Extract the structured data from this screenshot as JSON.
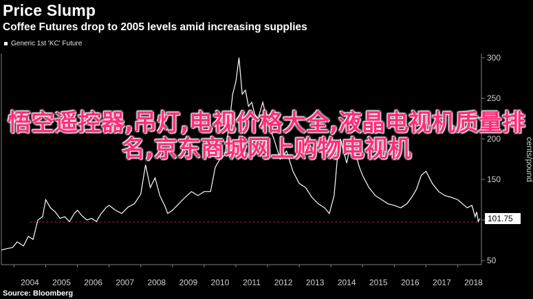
{
  "header": {
    "title": "Price Slump",
    "subtitle": "Coffee Futures drop to 2005 levels amid increasing supplies"
  },
  "footer": {
    "source": "Source: Bloomberg"
  },
  "overlay_text": "悟空遥控器,吊灯,电视价格大全,液晶电视机质量排名,京东商城网上购物电视机",
  "colors": {
    "background": "#000000",
    "line": "#ffffff",
    "reference_line": "#c0203a",
    "overlay": "#ff2d7a"
  },
  "chart_data": {
    "type": "line",
    "title": "Price Slump",
    "subtitle": "Coffee Futures drop to 2005 levels amid increasing supplies",
    "ylabel": "cents/pound",
    "xlabel": "",
    "x_tick_labels": [
      "2004",
      "2005",
      "2006",
      "2007",
      "2008",
      "2009",
      "2010",
      "2011",
      "2012",
      "2013",
      "2014",
      "2015",
      "2016",
      "2017",
      "2018"
    ],
    "y_ticks": [
      50,
      100,
      150,
      200,
      250,
      300
    ],
    "ylim": [
      45,
      305
    ],
    "xlim": [
      2003.6,
      2018.75
    ],
    "y_axis_side": "right",
    "grid": false,
    "legend": {
      "position": "top-left",
      "entries": [
        "Generic 1st 'KC' Future"
      ]
    },
    "last_value_label": "101.75",
    "reference_line": {
      "y": 97.5,
      "style": "dashed"
    },
    "series": [
      {
        "name": "Generic 1st 'KC' Future",
        "x": [
          2003.6,
          2003.8,
          2003.95,
          2004.1,
          2004.3,
          2004.45,
          2004.6,
          2004.75,
          2004.9,
          2005.0,
          2005.15,
          2005.3,
          2005.45,
          2005.6,
          2005.75,
          2005.9,
          2006.0,
          2006.15,
          2006.3,
          2006.45,
          2006.6,
          2006.75,
          2006.9,
          2007.0,
          2007.2,
          2007.4,
          2007.6,
          2007.8,
          2008.0,
          2008.15,
          2008.3,
          2008.45,
          2008.6,
          2008.75,
          2008.85,
          2009.0,
          2009.2,
          2009.4,
          2009.6,
          2009.8,
          2010.0,
          2010.2,
          2010.35,
          2010.5,
          2010.65,
          2010.8,
          2010.9,
          2011.0,
          2011.1,
          2011.2,
          2011.3,
          2011.4,
          2011.5,
          2011.6,
          2011.7,
          2011.85,
          2012.0,
          2012.2,
          2012.4,
          2012.6,
          2012.8,
          2013.0,
          2013.2,
          2013.4,
          2013.6,
          2013.8,
          2013.95,
          2014.1,
          2014.2,
          2014.3,
          2014.4,
          2014.5,
          2014.6,
          2014.75,
          2014.9,
          2015.0,
          2015.2,
          2015.4,
          2015.6,
          2015.8,
          2016.0,
          2016.2,
          2016.4,
          2016.55,
          2016.7,
          2016.85,
          2017.0,
          2017.2,
          2017.4,
          2017.6,
          2017.8,
          2018.0,
          2018.15,
          2018.3,
          2018.45,
          2018.55,
          2018.6,
          2018.65,
          2018.7
        ],
        "values": [
          63,
          65,
          66,
          73,
          68,
          80,
          76,
          100,
          104,
          125,
          115,
          110,
          102,
          104,
          98,
          108,
          112,
          105,
          100,
          102,
          98,
          108,
          115,
          118,
          112,
          108,
          116,
          120,
          132,
          168,
          140,
          152,
          130,
          118,
          108,
          112,
          120,
          128,
          135,
          130,
          135,
          135,
          165,
          175,
          180,
          220,
          255,
          270,
          300,
          255,
          260,
          240,
          245,
          230,
          225,
          245,
          220,
          200,
          175,
          185,
          160,
          145,
          140,
          128,
          120,
          115,
          108,
          130,
          175,
          200,
          185,
          170,
          190,
          185,
          165,
          155,
          140,
          130,
          125,
          120,
          118,
          115,
          120,
          128,
          138,
          155,
          160,
          145,
          135,
          130,
          128,
          125,
          120,
          115,
          118,
          104,
          110,
          98,
          101.75
        ]
      }
    ]
  }
}
